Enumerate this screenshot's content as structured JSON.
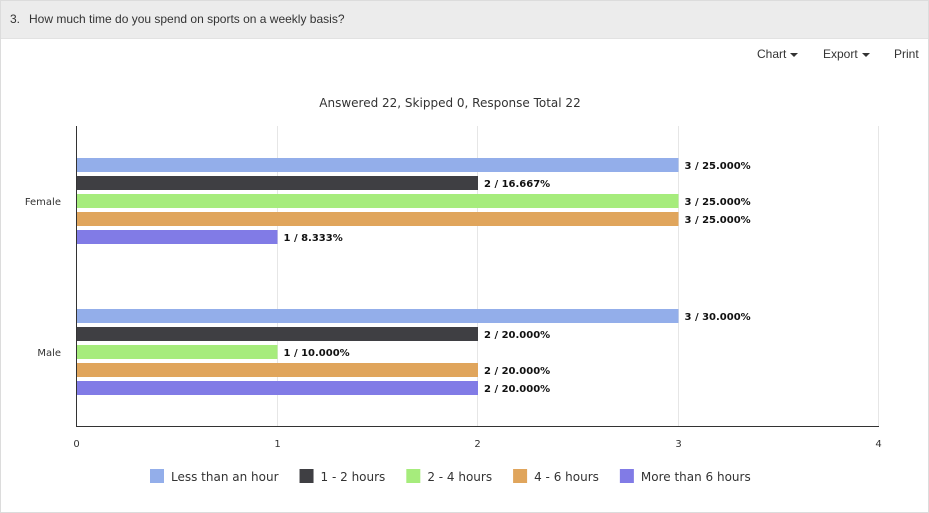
{
  "question": {
    "number": "3.",
    "text": "How much time do you spend on sports on a weekly basis?"
  },
  "toolbar": {
    "chart_label": "Chart",
    "export_label": "Export",
    "print_label": "Print"
  },
  "summary": "Answered 22, Skipped 0, Response Total 22",
  "colors": {
    "Less than an hour": "#93aeea",
    "1 - 2 hours": "#3f3f43",
    "2 - 4 hours": "#a6ec7c",
    "4 - 6 hours": "#e0a55c",
    "More than 6 hours": "#817be6"
  },
  "chart_data": {
    "type": "bar",
    "orientation": "horizontal",
    "categories": [
      "Female",
      "Male"
    ],
    "series": [
      {
        "name": "Less than an hour",
        "values": [
          3,
          3
        ],
        "labels": [
          "3 / 25.000%",
          "3 / 30.000%"
        ]
      },
      {
        "name": "1 - 2 hours",
        "values": [
          2,
          2
        ],
        "labels": [
          "2 / 16.667%",
          "2 / 20.000%"
        ]
      },
      {
        "name": "2 - 4 hours",
        "values": [
          3,
          1
        ],
        "labels": [
          "3 / 25.000%",
          "1 / 10.000%"
        ]
      },
      {
        "name": "4 - 6 hours",
        "values": [
          3,
          2
        ],
        "labels": [
          "3 / 25.000%",
          "2 / 20.000%"
        ]
      },
      {
        "name": "More than 6 hours",
        "values": [
          1,
          2
        ],
        "labels": [
          "1 / 8.333%",
          "2 / 20.000%"
        ]
      }
    ],
    "xlim": [
      0,
      4
    ],
    "ticks": [
      "0",
      "1",
      "2",
      "3",
      "4"
    ],
    "grid": true,
    "legend": "bottom"
  }
}
